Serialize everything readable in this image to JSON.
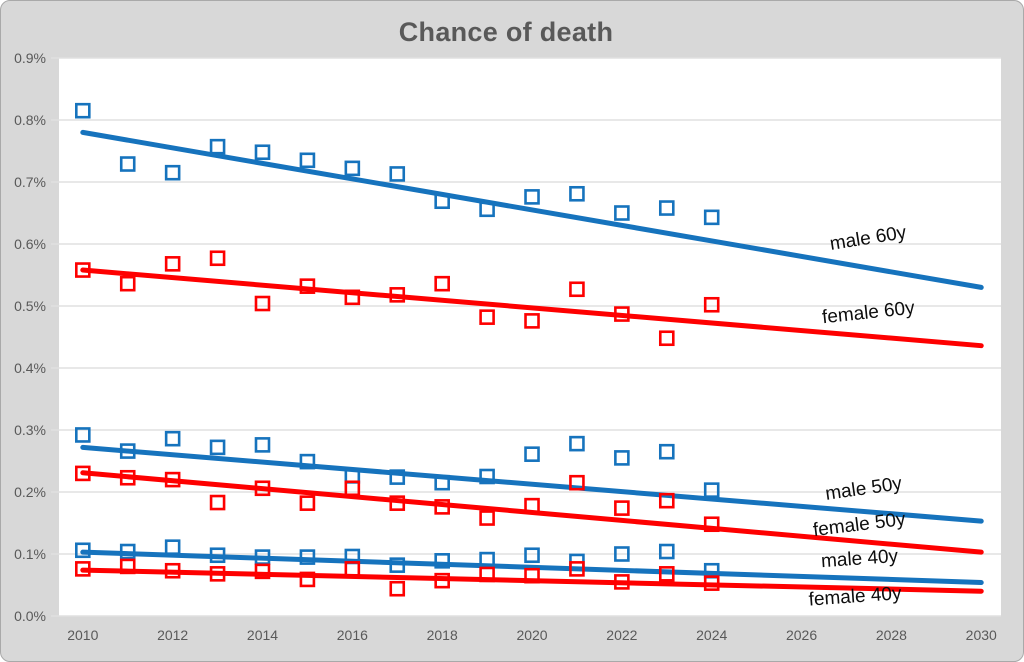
{
  "window": {
    "background": "#d8d8d8",
    "plot_background": "#ffffff",
    "border_color": "#a9a9a9"
  },
  "chart_data": {
    "type": "scatter",
    "title": "Chance of death",
    "title_color": "#595959",
    "xlabel": "",
    "ylabel": "",
    "grid": true,
    "legend_position": "inline-annotations",
    "colors": {
      "male": "#1673bd",
      "female": "#fe0000",
      "grid": "#e0e0e0",
      "axis_text": "#595959",
      "annotation_text": "#0d0d0d"
    },
    "x_axis": {
      "min": 2009.47,
      "max": 2030.44
    },
    "ylim": [
      0,
      0.9
    ],
    "x_ticks": [
      "2010",
      "2012",
      "2014",
      "2016",
      "2018",
      "2020",
      "2022",
      "2024",
      "2026",
      "2028",
      "2030"
    ],
    "y_ticks": [
      "0.0%",
      "0.1%",
      "0.2%",
      "0.3%",
      "0.4%",
      "0.5%",
      "0.6%",
      "0.7%",
      "0.8%",
      "0.9%"
    ],
    "units": "percent",
    "years": [
      2010,
      2011,
      2012,
      2013,
      2014,
      2015,
      2016,
      2017,
      2018,
      2019,
      2020,
      2021,
      2022,
      2023,
      2024
    ],
    "series": [
      {
        "id": "male-60y",
        "group": "male",
        "values": [
          0.815,
          0.729,
          0.715,
          0.757,
          0.748,
          0.735,
          0.722,
          0.713,
          0.669,
          0.656,
          0.676,
          0.681,
          0.65,
          0.658,
          0.643
        ],
        "trend": {
          "x": [
            2010,
            2030
          ],
          "y": [
            0.78,
            0.53
          ]
        },
        "annotation": {
          "text": "male 60y",
          "year": 2027.5,
          "pct": 0.6,
          "rotation": -9
        }
      },
      {
        "id": "female-60y",
        "group": "female",
        "values": [
          0.558,
          0.536,
          0.568,
          0.577,
          0.504,
          0.532,
          0.514,
          0.518,
          0.536,
          0.482,
          0.476,
          0.527,
          0.487,
          0.448,
          0.502
        ],
        "trend": {
          "x": [
            2010,
            2030
          ],
          "y": [
            0.558,
            0.436
          ]
        },
        "annotation": {
          "text": "female 60y",
          "year": 2027.5,
          "pct": 0.48,
          "rotation": -6
        }
      },
      {
        "id": "male-50y",
        "group": "male",
        "values": [
          0.292,
          0.266,
          0.286,
          0.272,
          0.276,
          0.249,
          0.226,
          0.224,
          0.215,
          0.225,
          0.261,
          0.278,
          0.255,
          0.265,
          0.203
        ],
        "trend": {
          "x": [
            2010,
            2030
          ],
          "y": [
            0.272,
            0.153
          ]
        },
        "annotation": {
          "text": "male 50y",
          "year": 2027.4,
          "pct": 0.196,
          "rotation": -8
        }
      },
      {
        "id": "female-50y",
        "group": "female",
        "values": [
          0.23,
          0.223,
          0.22,
          0.183,
          0.206,
          0.182,
          0.206,
          0.182,
          0.176,
          0.158,
          0.178,
          0.215,
          0.174,
          0.186,
          0.148
        ],
        "trend": {
          "x": [
            2010,
            2030
          ],
          "y": [
            0.231,
            0.103
          ]
        },
        "annotation": {
          "text": "female 50y",
          "year": 2027.3,
          "pct": 0.138,
          "rotation": -7
        }
      },
      {
        "id": "male-40y",
        "group": "male",
        "values": [
          0.106,
          0.104,
          0.111,
          0.098,
          0.095,
          0.095,
          0.096,
          0.082,
          0.089,
          0.091,
          0.098,
          0.088,
          0.1,
          0.104,
          0.073
        ],
        "trend": {
          "x": [
            2010,
            2030
          ],
          "y": [
            0.103,
            0.054
          ]
        },
        "annotation": {
          "text": "male 40y",
          "year": 2027.3,
          "pct": 0.083,
          "rotation": -4
        }
      },
      {
        "id": "female-40y",
        "group": "female",
        "values": [
          0.076,
          0.08,
          0.073,
          0.068,
          0.072,
          0.059,
          0.076,
          0.044,
          0.057,
          0.067,
          0.065,
          0.076,
          0.055,
          0.068,
          0.053
        ],
        "trend": {
          "x": [
            2010,
            2030
          ],
          "y": [
            0.074,
            0.04
          ]
        },
        "annotation": {
          "text": "female 40y",
          "year": 2027.2,
          "pct": 0.022,
          "rotation": -4
        }
      }
    ]
  }
}
